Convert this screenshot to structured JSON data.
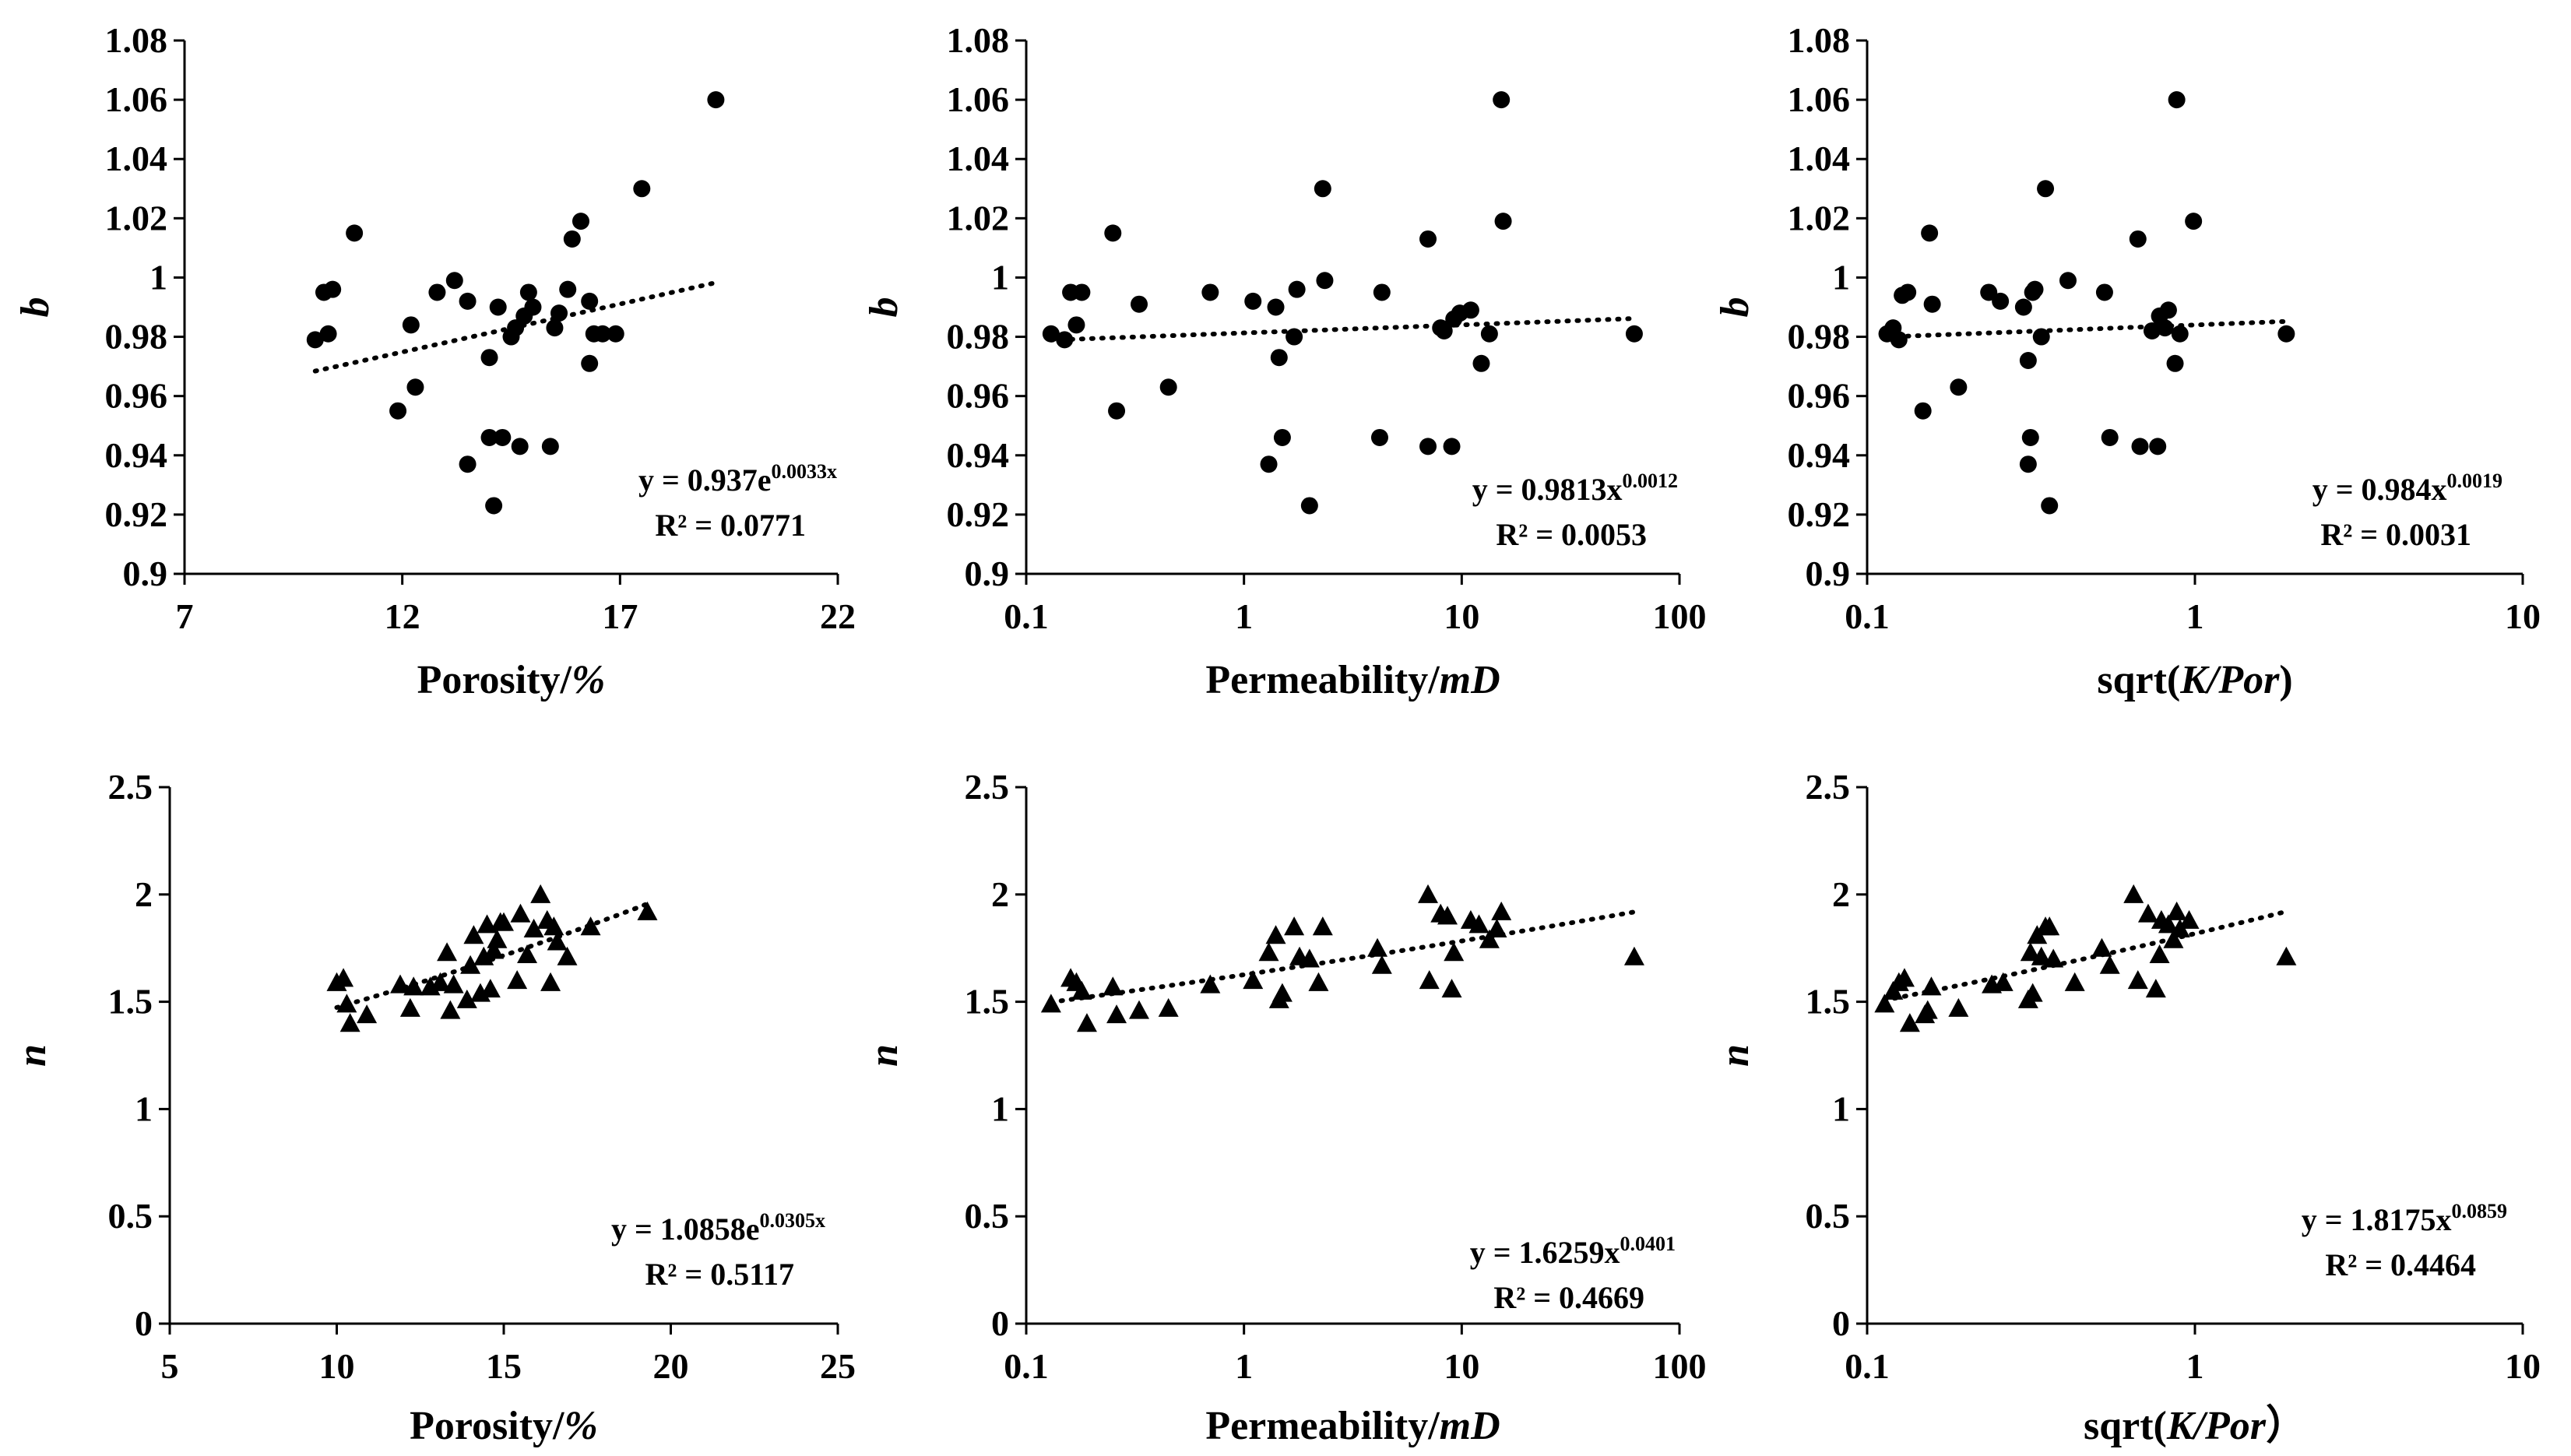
{
  "chart_data": [
    {
      "id": "b-porosity",
      "type": "scatter",
      "marker": "circle",
      "xscale": "linear",
      "xlim": [
        7,
        22
      ],
      "xticks": [
        "7",
        "12",
        "17",
        "22"
      ],
      "xtick_values": [
        7,
        12,
        17,
        22
      ],
      "ylim": [
        0.9,
        1.08
      ],
      "yticks": [
        "0.9",
        "0.92",
        "0.94",
        "0.96",
        "0.98",
        "1",
        "1.02",
        "1.04",
        "1.06",
        "1.08"
      ],
      "ytick_values": [
        0.9,
        0.92,
        0.94,
        0.96,
        0.98,
        1.0,
        1.02,
        1.04,
        1.06,
        1.08
      ],
      "xlabel": "Porosity/",
      "xlabel_italic": "%",
      "xlabel_tail": "",
      "ylabel": "b",
      "x": [
        10.0,
        10.2,
        10.3,
        10.4,
        10.9,
        11.9,
        12.2,
        12.3,
        12.8,
        13.2,
        13.5,
        13.5,
        14.0,
        14.0,
        14.1,
        14.2,
        14.3,
        14.5,
        14.6,
        14.7,
        14.8,
        14.9,
        15.0,
        15.4,
        15.5,
        15.6,
        15.8,
        15.9,
        16.1,
        16.3,
        16.3,
        16.4,
        16.6,
        16.9,
        17.5,
        19.2
      ],
      "y": [
        0.979,
        0.995,
        0.981,
        0.996,
        1.015,
        0.955,
        0.984,
        0.963,
        0.995,
        0.999,
        0.992,
        0.937,
        0.946,
        0.973,
        0.923,
        0.99,
        0.946,
        0.98,
        0.983,
        0.943,
        0.987,
        0.995,
        0.99,
        0.943,
        0.983,
        0.988,
        0.996,
        1.013,
        1.019,
        0.971,
        0.992,
        0.981,
        0.981,
        0.981,
        1.03,
        1.06
      ],
      "trend": {
        "kind": "exp",
        "a": 0.937,
        "b": 0.0033,
        "x_from": 10.0,
        "x_to": 19.2
      },
      "equation": {
        "lead": "y = 0.937e",
        "exp": "0.0033x",
        "r2": "R² = 0.0771"
      }
    },
    {
      "id": "b-permeability",
      "type": "scatter",
      "marker": "circle",
      "xscale": "log",
      "xlim": [
        0.1,
        100
      ],
      "xticks": [
        "0.1",
        "1",
        "10",
        "100"
      ],
      "xtick_values": [
        0.1,
        1,
        10,
        100
      ],
      "ylim": [
        0.9,
        1.08
      ],
      "yticks": [
        "0.9",
        "0.92",
        "0.94",
        "0.96",
        "0.98",
        "1",
        "1.02",
        "1.04",
        "1.06",
        "1.08"
      ],
      "ytick_values": [
        0.9,
        0.92,
        0.94,
        0.96,
        0.98,
        1.0,
        1.02,
        1.04,
        1.06,
        1.08
      ],
      "xlabel": "Permeability/",
      "xlabel_italic": "mD",
      "xlabel_tail": "",
      "ylabel": "b",
      "x": [
        0.13,
        0.15,
        0.16,
        0.17,
        0.18,
        0.25,
        0.26,
        0.33,
        0.45,
        0.7,
        1.1,
        1.3,
        1.4,
        1.45,
        1.5,
        1.7,
        1.75,
        2.0,
        2.3,
        2.35,
        4.2,
        4.3,
        7.0,
        7.0,
        8.0,
        8.3,
        9.0,
        9.2,
        9.8,
        11.0,
        12.3,
        13.4,
        15.2,
        15.5,
        62.0
      ],
      "y": [
        0.981,
        0.979,
        0.995,
        0.984,
        0.995,
        1.015,
        0.955,
        0.991,
        0.963,
        0.995,
        0.992,
        0.937,
        0.99,
        0.973,
        0.946,
        0.98,
        0.996,
        0.923,
        1.03,
        0.999,
        0.946,
        0.995,
        1.013,
        0.943,
        0.983,
        0.982,
        0.943,
        0.986,
        0.988,
        0.989,
        0.971,
        0.981,
        1.06,
        1.019,
        0.981
      ],
      "trend": {
        "kind": "power",
        "a": 0.9813,
        "b": 0.0012,
        "x_from": 0.13,
        "x_to": 62.0
      },
      "equation": {
        "lead": "y = 0.9813x",
        "exp": "0.0012",
        "r2": "R² = 0.0053"
      }
    },
    {
      "id": "b-sqrt",
      "type": "scatter",
      "marker": "circle",
      "xscale": "log",
      "xlim": [
        0.1,
        10
      ],
      "xticks": [
        "0.1",
        "1",
        "10"
      ],
      "xtick_values": [
        0.1,
        1,
        10
      ],
      "ylim": [
        0.9,
        1.08
      ],
      "yticks": [
        "0.9",
        "0.92",
        "0.94",
        "0.96",
        "0.98",
        "1",
        "1.02",
        "1.04",
        "1.06",
        "1.08"
      ],
      "ytick_values": [
        0.9,
        0.92,
        0.94,
        0.96,
        0.98,
        1.0,
        1.02,
        1.04,
        1.06,
        1.08
      ],
      "xlabel": "sqrt(",
      "xlabel_italic": "K/Por",
      "xlabel_tail": ")",
      "ylabel": "b",
      "x": [
        0.115,
        0.12,
        0.125,
        0.128,
        0.133,
        0.148,
        0.155,
        0.158,
        0.19,
        0.235,
        0.255,
        0.3,
        0.31,
        0.315,
        0.31,
        0.325,
        0.32,
        0.34,
        0.35,
        0.36,
        0.41,
        0.53,
        0.55,
        0.67,
        0.68,
        0.74,
        0.77,
        0.78,
        0.81,
        0.83,
        0.87,
        0.88,
        0.9,
        0.99,
        1.9
      ],
      "y": [
        0.981,
        0.983,
        0.979,
        0.994,
        0.995,
        0.955,
        1.015,
        0.991,
        0.963,
        0.995,
        0.992,
        0.99,
        0.937,
        0.946,
        0.972,
        0.996,
        0.995,
        0.98,
        1.03,
        0.923,
        0.999,
        0.995,
        0.946,
        1.013,
        0.943,
        0.982,
        0.943,
        0.987,
        0.983,
        0.989,
        0.971,
        1.06,
        0.981,
        1.019,
        0.981
      ],
      "trend": {
        "kind": "power",
        "a": 0.984,
        "b": 0.0019,
        "x_from": 0.115,
        "x_to": 1.9
      },
      "equation": {
        "lead": "y = 0.984x",
        "exp": "0.0019",
        "r2": "R² = 0.0031"
      }
    },
    {
      "id": "n-porosity",
      "type": "scatter",
      "marker": "triangle",
      "xscale": "linear",
      "xlim": [
        5,
        25
      ],
      "xticks": [
        "5",
        "10",
        "15",
        "20",
        "25"
      ],
      "xtick_values": [
        5,
        10,
        15,
        20,
        25
      ],
      "ylim": [
        0,
        2.5
      ],
      "yticks": [
        "0",
        "0.5",
        "1",
        "1.5",
        "2",
        "2.5"
      ],
      "ytick_values": [
        0,
        0.5,
        1,
        1.5,
        2,
        2.5
      ],
      "xlabel": "Porosity/",
      "xlabel_italic": "%",
      "xlabel_tail": "",
      "ylabel": "n",
      "x": [
        10.0,
        10.2,
        10.3,
        10.4,
        10.9,
        11.9,
        12.2,
        12.3,
        12.8,
        13.1,
        13.3,
        13.4,
        13.5,
        13.9,
        14.0,
        14.1,
        14.3,
        14.4,
        14.5,
        14.6,
        14.7,
        14.8,
        14.9,
        15.0,
        15.4,
        15.5,
        15.7,
        15.9,
        16.1,
        16.3,
        16.4,
        16.5,
        16.6,
        16.9,
        17.6,
        19.3
      ],
      "y": [
        1.59,
        1.61,
        1.49,
        1.4,
        1.44,
        1.58,
        1.47,
        1.57,
        1.57,
        1.59,
        1.73,
        1.46,
        1.58,
        1.51,
        1.67,
        1.81,
        1.54,
        1.71,
        1.86,
        1.56,
        1.74,
        1.79,
        1.87,
        1.87,
        1.6,
        1.91,
        1.72,
        1.84,
        2.0,
        1.88,
        1.59,
        1.85,
        1.78,
        1.71,
        1.85,
        1.92
      ],
      "trend": {
        "kind": "exp",
        "a": 1.0858,
        "b": 0.0305,
        "x_from": 10.0,
        "x_to": 19.3
      },
      "equation": {
        "lead": "y = 1.0858e",
        "exp": "0.0305x",
        "r2": "R² = 0.5117"
      }
    },
    {
      "id": "n-permeability",
      "type": "scatter",
      "marker": "triangle",
      "xscale": "log",
      "xlim": [
        0.1,
        100
      ],
      "xticks": [
        "0.1",
        "1",
        "10",
        "100"
      ],
      "xtick_values": [
        0.1,
        1,
        10,
        100
      ],
      "ylim": [
        0,
        2.5
      ],
      "yticks": [
        "0",
        "0.5",
        "1",
        "1.5",
        "2",
        "2.5"
      ],
      "ytick_values": [
        0,
        0.5,
        1,
        1.5,
        2,
        2.5
      ],
      "xlabel": "Permeability/",
      "xlabel_italic": "mD",
      "xlabel_tail": "",
      "ylabel": "n",
      "x": [
        0.13,
        0.16,
        0.17,
        0.18,
        0.19,
        0.25,
        0.26,
        0.33,
        0.45,
        0.7,
        1.1,
        1.3,
        1.4,
        1.45,
        1.5,
        1.7,
        1.8,
        2.0,
        2.2,
        2.3,
        4.1,
        4.3,
        7.0,
        7.1,
        8.0,
        8.6,
        9.0,
        9.2,
        11.0,
        12.0,
        13.4,
        14.5,
        15.2,
        62.0
      ],
      "y": [
        1.49,
        1.61,
        1.59,
        1.55,
        1.4,
        1.57,
        1.44,
        1.46,
        1.47,
        1.58,
        1.6,
        1.73,
        1.81,
        1.51,
        1.54,
        1.85,
        1.71,
        1.7,
        1.59,
        1.85,
        1.75,
        1.67,
        2.0,
        1.6,
        1.91,
        1.9,
        1.56,
        1.73,
        1.88,
        1.86,
        1.79,
        1.84,
        1.92,
        1.71
      ],
      "trend": {
        "kind": "power",
        "a": 1.6259,
        "b": 0.0401,
        "x_from": 0.13,
        "x_to": 62.0
      },
      "equation": {
        "lead": "y = 1.6259x",
        "exp": "0.0401",
        "r2": "R² = 0.4669"
      }
    },
    {
      "id": "n-sqrt",
      "type": "scatter",
      "marker": "triangle",
      "xscale": "log",
      "xlim": [
        0.1,
        10
      ],
      "xticks": [
        "0.1",
        "1",
        "10"
      ],
      "xtick_values": [
        0.1,
        1,
        10
      ],
      "ylim": [
        0,
        2.5
      ],
      "yticks": [
        "0",
        "0.5",
        "1",
        "1.5",
        "2",
        "2.5"
      ],
      "ytick_values": [
        0,
        0.5,
        1,
        1.5,
        2,
        2.5
      ],
      "xlabel": "sqrt(",
      "xlabel_italic": "K/Por",
      "xlabel_tail": "）",
      "ylabel": "n",
      "x": [
        0.113,
        0.12,
        0.125,
        0.13,
        0.135,
        0.15,
        0.153,
        0.157,
        0.19,
        0.24,
        0.26,
        0.31,
        0.32,
        0.315,
        0.33,
        0.34,
        0.35,
        0.36,
        0.37,
        0.43,
        0.52,
        0.55,
        0.65,
        0.67,
        0.72,
        0.76,
        0.78,
        0.79,
        0.83,
        0.86,
        0.88,
        0.9,
        0.96,
        1.9
      ],
      "y": [
        1.49,
        1.55,
        1.59,
        1.61,
        1.4,
        1.44,
        1.46,
        1.57,
        1.47,
        1.58,
        1.59,
        1.51,
        1.54,
        1.73,
        1.81,
        1.71,
        1.85,
        1.85,
        1.7,
        1.59,
        1.75,
        1.67,
        2.0,
        1.6,
        1.91,
        1.56,
        1.72,
        1.88,
        1.86,
        1.79,
        1.92,
        1.84,
        1.88,
        1.71
      ],
      "trend": {
        "kind": "power",
        "a": 1.8175,
        "b": 0.0859,
        "x_from": 0.113,
        "x_to": 1.9
      },
      "equation": {
        "lead": "y = 1.8175x",
        "exp": "0.0859",
        "r2": "R² = 0.4464"
      }
    }
  ]
}
